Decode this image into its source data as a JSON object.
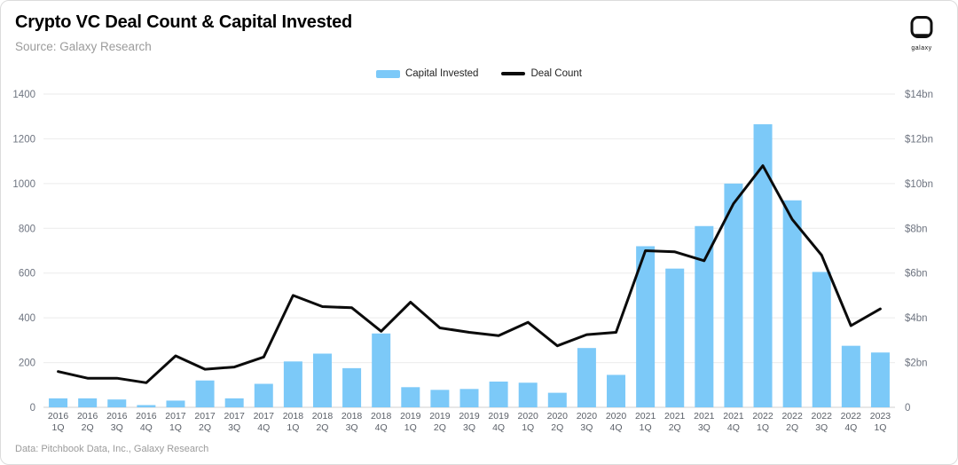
{
  "header": {
    "title": "Crypto VC Deal Count & Capital Invested",
    "source": "Source: Galaxy Research"
  },
  "logo": {
    "label": "galaxy"
  },
  "legend": {
    "items": [
      {
        "label": "Capital Invested",
        "color": "#7cc9f8",
        "type": "bar"
      },
      {
        "label": "Deal Count",
        "color": "#0b0b0b",
        "type": "line"
      }
    ]
  },
  "footer": {
    "text": "Data: Pitchbook Data, Inc., Galaxy Research"
  },
  "chart_data": {
    "type": "bar",
    "subtype": "combo-bar-line",
    "title": "Crypto VC Deal Count & Capital Invested",
    "bar_color": "#7cc9f8",
    "line_color": "#0b0b0b",
    "grid": true,
    "legend_position": "top-center",
    "categories": [
      "2016 1Q",
      "2016 2Q",
      "2016 3Q",
      "2016 4Q",
      "2017 1Q",
      "2017 2Q",
      "2017 3Q",
      "2017 4Q",
      "2018 1Q",
      "2018 2Q",
      "2018 3Q",
      "2018 4Q",
      "2019 1Q",
      "2019 2Q",
      "2019 3Q",
      "2019 4Q",
      "2020 1Q",
      "2020 2Q",
      "2020 3Q",
      "2020 4Q",
      "2021 1Q",
      "2021 2Q",
      "2021 3Q",
      "2021 4Q",
      "2022 1Q",
      "2022 2Q",
      "2022 3Q",
      "2022 4Q",
      "2023 1Q"
    ],
    "series": [
      {
        "name": "Capital Invested",
        "type": "bar",
        "axis": "right",
        "unit": "$bn",
        "values": [
          0.4,
          0.4,
          0.35,
          0.1,
          0.3,
          1.2,
          0.4,
          1.05,
          2.05,
          2.4,
          1.75,
          3.3,
          0.9,
          0.78,
          0.82,
          1.15,
          1.1,
          0.65,
          2.65,
          1.45,
          7.2,
          6.2,
          8.1,
          10.0,
          12.65,
          9.25,
          6.05,
          2.75,
          2.45
        ]
      },
      {
        "name": "Deal Count",
        "type": "line",
        "axis": "left",
        "values": [
          160,
          130,
          130,
          110,
          230,
          170,
          180,
          225,
          500,
          450,
          445,
          340,
          470,
          355,
          335,
          320,
          380,
          275,
          325,
          335,
          700,
          695,
          655,
          910,
          1080,
          840,
          680,
          365,
          440
        ]
      }
    ],
    "left_axis": {
      "label": "Deal Count",
      "range": [
        0,
        1400
      ],
      "ticks": [
        0,
        200,
        400,
        600,
        800,
        1000,
        1200,
        1400
      ]
    },
    "right_axis": {
      "label": "Capital Invested",
      "range_bn": [
        0,
        14
      ],
      "ticks": [
        "0",
        "$2bn",
        "$4bn",
        "$6bn",
        "$8bn",
        "$10bn",
        "$12bn",
        "$14bn"
      ]
    }
  }
}
